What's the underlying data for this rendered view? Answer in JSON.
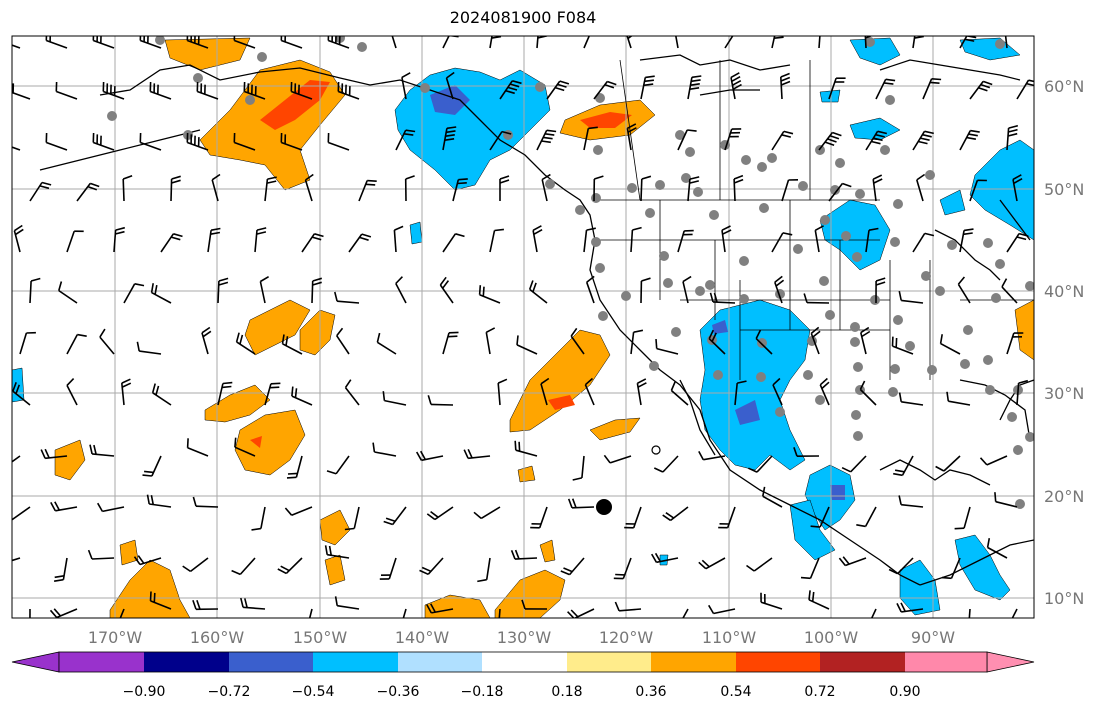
{
  "title": "2024081900 F084",
  "lat_ticks": [
    "60°N",
    "50°N",
    "40°N",
    "30°N",
    "20°N",
    "10°N"
  ],
  "lon_ticks": [
    "170°W",
    "160°W",
    "150°W",
    "140°W",
    "130°W",
    "120°W",
    "110°W",
    "100°W",
    "90°W"
  ],
  "colorbar": {
    "labels": [
      "−0.90",
      "−0.72",
      "−0.54",
      "−0.36",
      "−0.18",
      "0.18",
      "0.36",
      "0.54",
      "0.72",
      "0.90"
    ],
    "colors": [
      "#9932cc",
      "#00008b",
      "#3a5fcd",
      "#00bfff",
      "#b0e0ff",
      "#ffffff",
      "#ffec8b",
      "#ffa500",
      "#ff4500",
      "#b22222",
      "#ff88aa",
      "#ff8fb1"
    ]
  },
  "colors": {
    "land_outline": "#000000",
    "gridline": "#aaaaaa",
    "station_marker": "#808080",
    "positive_field": "#ffa500",
    "strong_positive": "#ff4500",
    "negative_field": "#00bfff",
    "strong_negative": "#3a5fcd"
  },
  "map": {
    "projection": "cylindrical",
    "lon_range": [
      -180,
      -80
    ],
    "lat_range": [
      8,
      65
    ],
    "gridlines": true,
    "overlays": [
      "shaded anomaly field",
      "wind barbs",
      "station dots",
      "coastlines",
      "state borders"
    ]
  }
}
